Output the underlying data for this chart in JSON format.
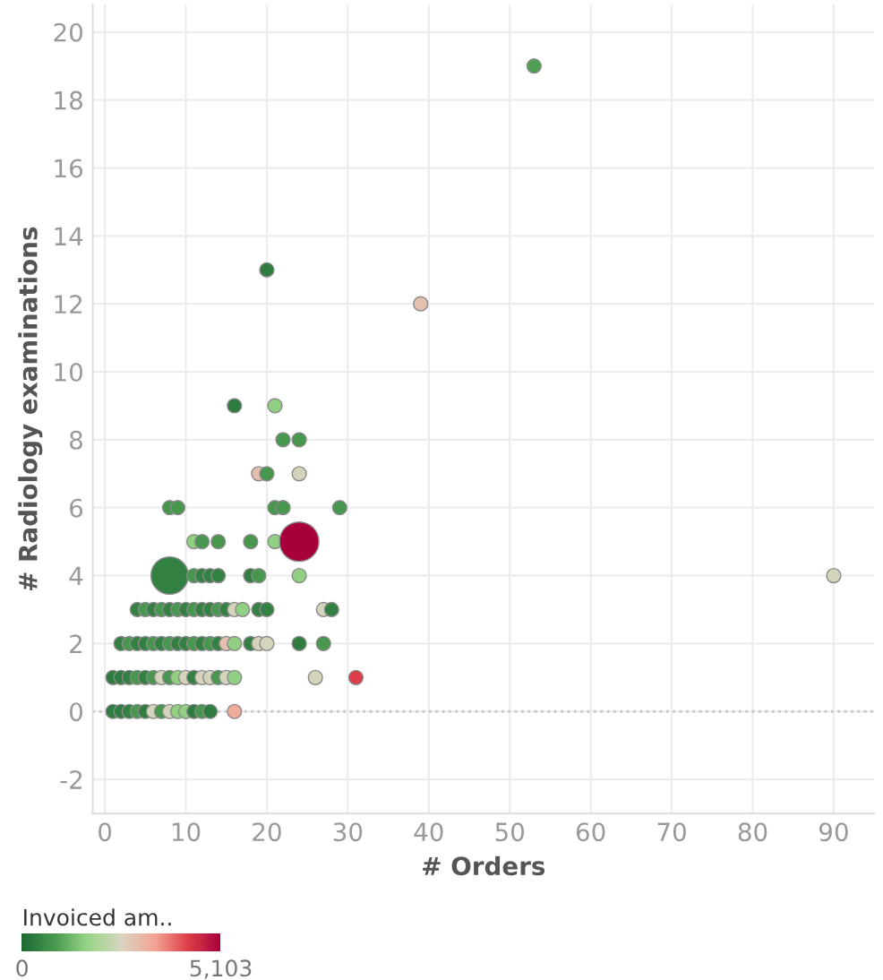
{
  "chart_data": {
    "type": "bubble",
    "xlabel": "# Orders",
    "ylabel": "# Radiology examinations",
    "clabel": "Invoiced am..",
    "xlim": [
      -1.5,
      95
    ],
    "ylim": [
      -3,
      20.8
    ],
    "xticks": [
      0,
      10,
      20,
      30,
      40,
      50,
      60,
      70,
      80,
      90
    ],
    "yticks": [
      {
        "value": -2,
        "label": "-2"
      },
      0,
      2,
      4,
      6,
      8,
      10,
      12,
      14,
      16,
      18,
      20
    ],
    "grid": true,
    "marker": "circle",
    "clim": [
      0,
      5103
    ],
    "cticks": [
      0,
      {
        "value": 5103,
        "label": "5,103"
      }
    ],
    "ref_lines": [
      {
        "axis": "y",
        "value": 0,
        "color": "#c8c8c8",
        "line_style": "dotted"
      }
    ],
    "series": [
      {
        "x": [
          53,
          39,
          20,
          90,
          16,
          21,
          22,
          24,
          19,
          20,
          24,
          8,
          9,
          21,
          22,
          29,
          11,
          12,
          14,
          18,
          21,
          24,
          8,
          11,
          12,
          13,
          14,
          18,
          19,
          24,
          4,
          5,
          6,
          7,
          8,
          9,
          10,
          11,
          12,
          13,
          14,
          15,
          16,
          17,
          19,
          20,
          27,
          28,
          2,
          3,
          4,
          5,
          6,
          7,
          8,
          9,
          10,
          11,
          12,
          13,
          14,
          15,
          16,
          18,
          19,
          20,
          24,
          27,
          1,
          2,
          3,
          4,
          5,
          6,
          7,
          8,
          9,
          10,
          11,
          12,
          13,
          14,
          15,
          16,
          26,
          31,
          1,
          2,
          3,
          4,
          5,
          6,
          7,
          8,
          9,
          10,
          11,
          12,
          13,
          16
        ],
        "values": [
          19,
          12,
          13,
          4,
          9,
          9,
          8,
          8,
          7,
          7,
          7,
          6,
          6,
          6,
          6,
          6,
          5,
          5,
          5,
          5,
          5,
          5,
          4,
          4,
          4,
          4,
          4,
          4,
          4,
          4,
          3,
          3,
          3,
          3,
          3,
          3,
          3,
          3,
          3,
          3,
          3,
          3,
          3,
          3,
          3,
          3,
          3,
          3,
          2,
          2,
          2,
          2,
          2,
          2,
          2,
          2,
          2,
          2,
          2,
          2,
          2,
          2,
          2,
          2,
          2,
          2,
          2,
          2,
          1,
          1,
          1,
          1,
          1,
          1,
          1,
          1,
          1,
          1,
          1,
          1,
          1,
          1,
          1,
          1,
          1,
          1,
          0,
          0,
          0,
          0,
          0,
          0,
          0,
          0,
          0,
          0,
          0,
          0,
          0,
          0
        ],
        "sizes": [
          0.13,
          0.13,
          0.13,
          0.13,
          0.13,
          0.13,
          0.13,
          0.13,
          0.13,
          0.13,
          0.13,
          0.13,
          0.13,
          0.13,
          0.13,
          0.13,
          0.13,
          0.13,
          0.13,
          0.13,
          0.13,
          1,
          0.9,
          0.13,
          0.13,
          0.13,
          0.13,
          0.13,
          0.13,
          0.13,
          0.13,
          0.13,
          0.13,
          0.13,
          0.13,
          0.13,
          0.13,
          0.13,
          0.13,
          0.13,
          0.13,
          0.13,
          0.13,
          0.13,
          0.13,
          0.13,
          0.13,
          0.13,
          0.13,
          0.13,
          0.13,
          0.13,
          0.13,
          0.13,
          0.13,
          0.13,
          0.13,
          0.13,
          0.13,
          0.13,
          0.13,
          0.13,
          0.13,
          0.13,
          0.13,
          0.13,
          0.13,
          0.13,
          0.13,
          0.13,
          0.13,
          0.13,
          0.13,
          0.13,
          0.13,
          0.13,
          0.13,
          0.13,
          0.13,
          0.13,
          0.13,
          0.13,
          0.13,
          0.13,
          0.13,
          0.13,
          0.13,
          0.13,
          0.13,
          0.13,
          0.13,
          0.13,
          0.13,
          0.13,
          0.13,
          0.13,
          0.13,
          0.13,
          0.13,
          0.13
        ],
        "cvalues": [
          900,
          2900,
          300,
          2500,
          300,
          1600,
          800,
          800,
          2950,
          800,
          2500,
          800,
          800,
          800,
          800,
          800,
          1600,
          800,
          800,
          800,
          1600,
          5103,
          400,
          800,
          400,
          400,
          400,
          400,
          800,
          1600,
          400,
          800,
          400,
          800,
          400,
          800,
          400,
          800,
          400,
          400,
          800,
          400,
          2500,
          1600,
          400,
          400,
          2500,
          400,
          400,
          800,
          400,
          400,
          800,
          400,
          800,
          400,
          400,
          800,
          400,
          800,
          400,
          2900,
          1600,
          400,
          2500,
          2500,
          300,
          800,
          300,
          300,
          400,
          800,
          400,
          800,
          2500,
          800,
          1600,
          2500,
          400,
          2500,
          2500,
          800,
          2500,
          1600,
          2500,
          4300,
          300,
          300,
          400,
          800,
          300,
          2500,
          800,
          2500,
          1600,
          1600,
          300,
          800,
          300,
          3300
        ]
      }
    ]
  }
}
